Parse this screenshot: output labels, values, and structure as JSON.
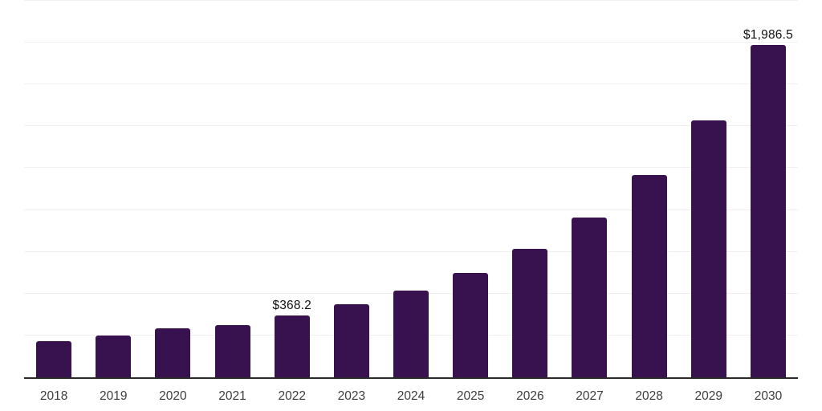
{
  "page": {
    "background_color": "#ffffff"
  },
  "chart_data": {
    "type": "bar",
    "title": "",
    "subtitle": "",
    "xlabel": "",
    "ylabel": "",
    "categories": [
      "2018",
      "2019",
      "2020",
      "2021",
      "2022",
      "2023",
      "2024",
      "2025",
      "2026",
      "2027",
      "2028",
      "2029",
      "2030"
    ],
    "values": [
      213.6,
      248.6,
      291.8,
      313.0,
      368.2,
      434.4,
      517.4,
      625.0,
      769.0,
      956.2,
      1208.6,
      1537.0,
      1986.5
    ],
    "data_labels": [
      "",
      "",
      "",
      "",
      "$368.2",
      "",
      "",
      "",
      "",
      "",
      "",
      "",
      "$1,986.5"
    ],
    "ylim": [
      0,
      2250
    ],
    "grid": true,
    "gridline_step": 250,
    "y_tick_labels_shown": false,
    "legend": false,
    "legend_position": "none",
    "bar_color": "#38124E",
    "gridline_color": "#f0f0f0",
    "axis_line_color": "#2b2b2b",
    "tick_label_color": "#3d3d3d",
    "data_label_color": "#111111"
  }
}
